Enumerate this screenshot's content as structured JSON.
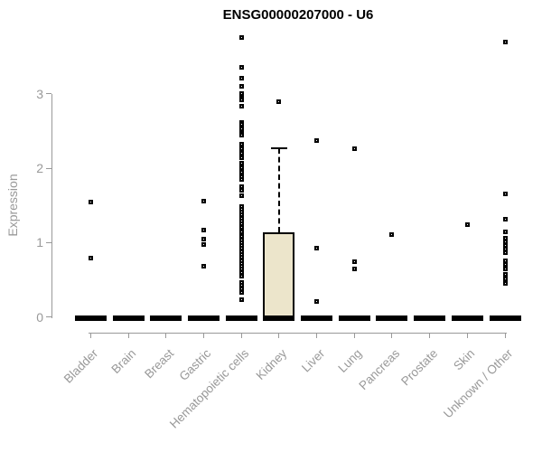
{
  "header": {
    "title": "ENSG00000207000 - U6"
  },
  "chart_data": {
    "type": "boxplot",
    "title": "ENSG00000207000 - U6",
    "ylabel": "Expression",
    "xlabel": "",
    "yticks": [
      0,
      1,
      2,
      3
    ],
    "ylim": [
      -0.1,
      3.9
    ],
    "grid": false,
    "legend": "none",
    "marker": "open-square",
    "colors": {
      "title": "#000000",
      "axis": "#999999",
      "tick_labels": "#999999",
      "box_fill": "#ECE5CB",
      "box_border": "#000000",
      "outlier": "#000000"
    },
    "categories": [
      "Bladder",
      "Brain",
      "Breast",
      "Gastric",
      "Hematopoietic cells",
      "Kidney",
      "Liver",
      "Lung",
      "Pancreas",
      "Prostate",
      "Skin",
      "Unknown / Other"
    ],
    "series": [
      {
        "category": "Bladder",
        "q1": 0,
        "median": 0,
        "q3": 0,
        "whisker_low": 0,
        "whisker_high": 0,
        "outliers": [
          1.55,
          0.79
        ]
      },
      {
        "category": "Brain",
        "q1": 0,
        "median": 0,
        "q3": 0,
        "whisker_low": 0,
        "whisker_high": 0,
        "outliers": []
      },
      {
        "category": "Breast",
        "q1": 0,
        "median": 0,
        "q3": 0,
        "whisker_low": 0,
        "whisker_high": 0,
        "outliers": []
      },
      {
        "category": "Gastric",
        "q1": 0,
        "median": 0,
        "q3": 0,
        "whisker_low": 0,
        "whisker_high": 0,
        "outliers": [
          1.56,
          1.17,
          1.05,
          0.97,
          0.68
        ]
      },
      {
        "category": "Hematopoietic cells",
        "q1": 0,
        "median": 0,
        "q3": 0,
        "whisker_low": 0,
        "whisker_high": 0,
        "outliers": [
          3.76,
          3.36,
          3.21,
          3.1,
          3.01,
          2.94,
          2.92,
          2.83,
          2.62,
          2.59,
          2.56,
          2.53,
          2.5,
          2.47,
          2.44,
          2.32,
          2.26,
          2.2,
          2.14,
          2.07,
          2.01,
          1.95,
          1.89,
          1.85,
          1.75,
          1.7,
          1.63,
          1.49,
          1.45,
          1.41,
          1.37,
          1.33,
          1.29,
          1.25,
          1.21,
          1.17,
          1.14,
          1.08,
          1.04,
          1.0,
          0.96,
          0.92,
          0.88,
          0.84,
          0.8,
          0.76,
          0.72,
          0.68,
          0.64,
          0.6,
          0.55,
          0.46,
          0.42,
          0.38,
          0.33,
          0.23
        ]
      },
      {
        "category": "Kidney",
        "q1": 0,
        "median": 0,
        "q3": 1.14,
        "whisker_low": 0,
        "whisker_high": 2.27,
        "outliers": [
          2.89
        ]
      },
      {
        "category": "Liver",
        "q1": 0,
        "median": 0,
        "q3": 0,
        "whisker_low": 0,
        "whisker_high": 0,
        "outliers": [
          2.37,
          0.92,
          0.21
        ]
      },
      {
        "category": "Lung",
        "q1": 0,
        "median": 0,
        "q3": 0,
        "whisker_low": 0,
        "whisker_high": 0,
        "outliers": [
          2.26,
          0.74,
          0.65
        ]
      },
      {
        "category": "Pancreas",
        "q1": 0,
        "median": 0,
        "q3": 0,
        "whisker_low": 0,
        "whisker_high": 0,
        "outliers": [
          1.11
        ]
      },
      {
        "category": "Prostate",
        "q1": 0,
        "median": 0,
        "q3": 0,
        "whisker_low": 0,
        "whisker_high": 0,
        "outliers": []
      },
      {
        "category": "Skin",
        "q1": 0,
        "median": 0,
        "q3": 0,
        "whisker_low": 0,
        "whisker_high": 0,
        "outliers": [
          1.24
        ]
      },
      {
        "category": "Unknown / Other",
        "q1": 0,
        "median": 0,
        "q3": 0,
        "whisker_low": 0,
        "whisker_high": 0,
        "outliers": [
          3.7,
          1.65,
          1.31,
          1.14,
          1.06,
          1.01,
          0.96,
          0.91,
          0.86,
          0.76,
          0.7,
          0.64,
          0.57,
          0.51,
          0.45
        ]
      }
    ]
  }
}
